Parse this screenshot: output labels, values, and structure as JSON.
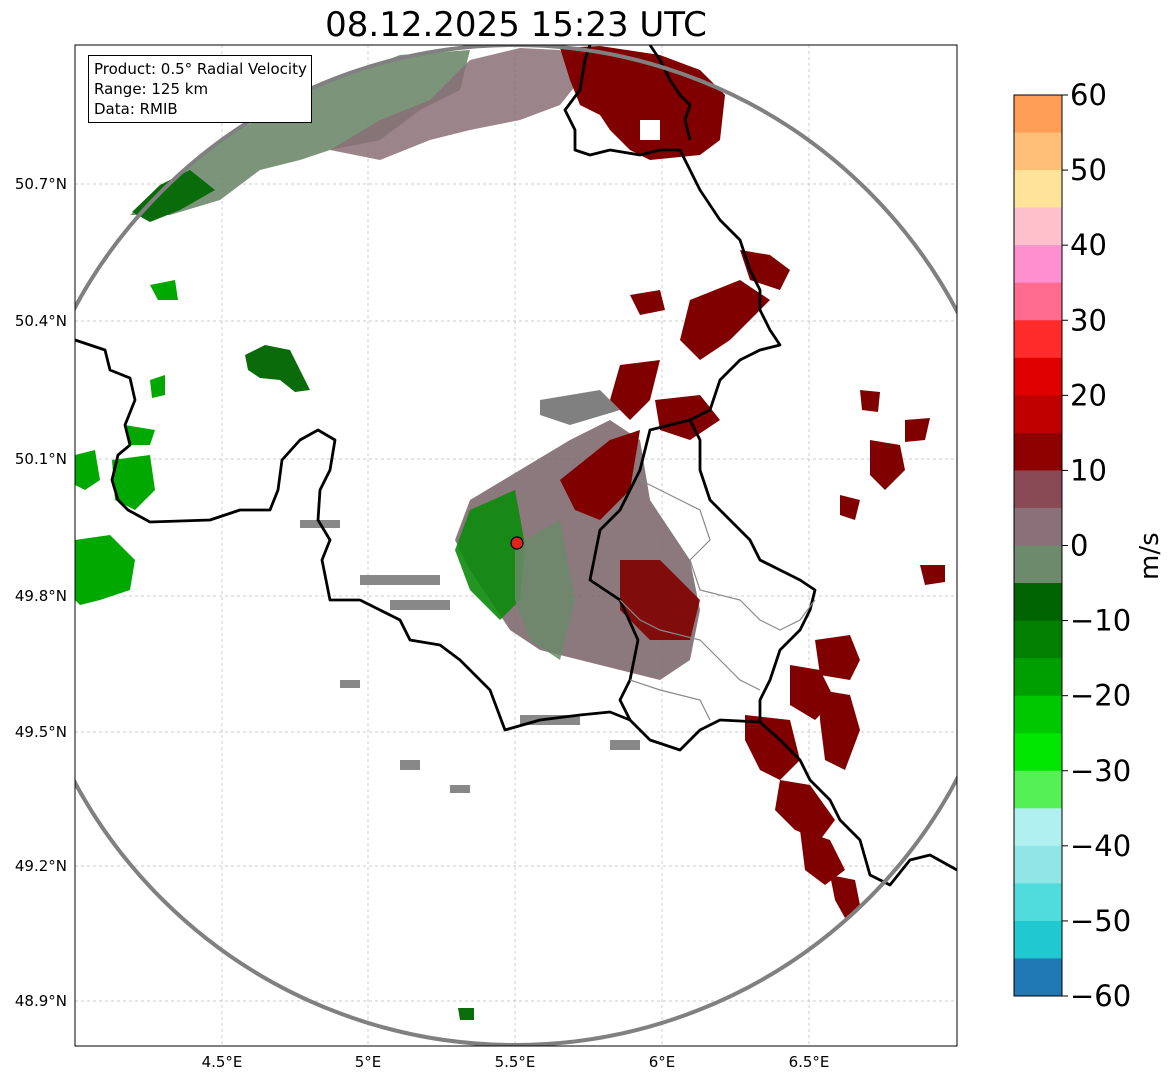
{
  "title": "08.12.2025 15:23 UTC",
  "info": {
    "product": "Product: 0.5° Radial Velocity",
    "range": "Range: 125 km",
    "source": "Data: RMIB"
  },
  "axes": {
    "lat_labels": [
      "50.7°N",
      "50.4°N",
      "50.1°N",
      "49.8°N",
      "49.5°N",
      "49.2°N",
      "48.9°N"
    ],
    "lon_labels": [
      "4.5°E",
      "5°E",
      "5.5°E",
      "6°E",
      "6.5°E"
    ]
  },
  "colorbar": {
    "unit": "m/s",
    "ticks": [
      "60",
      "50",
      "40",
      "30",
      "20",
      "10",
      "0",
      "−10",
      "−20",
      "−30",
      "−40",
      "−50",
      "−60"
    ],
    "range": [
      -60,
      60
    ]
  },
  "colors": {
    "inbound_dark": "#006400",
    "inbound_bright": "#00c800",
    "near_zero": "#7f7f7f",
    "outbound": "#800000",
    "border": "#000000",
    "range_ring": "#808080",
    "radar_site": "#e32222"
  }
}
